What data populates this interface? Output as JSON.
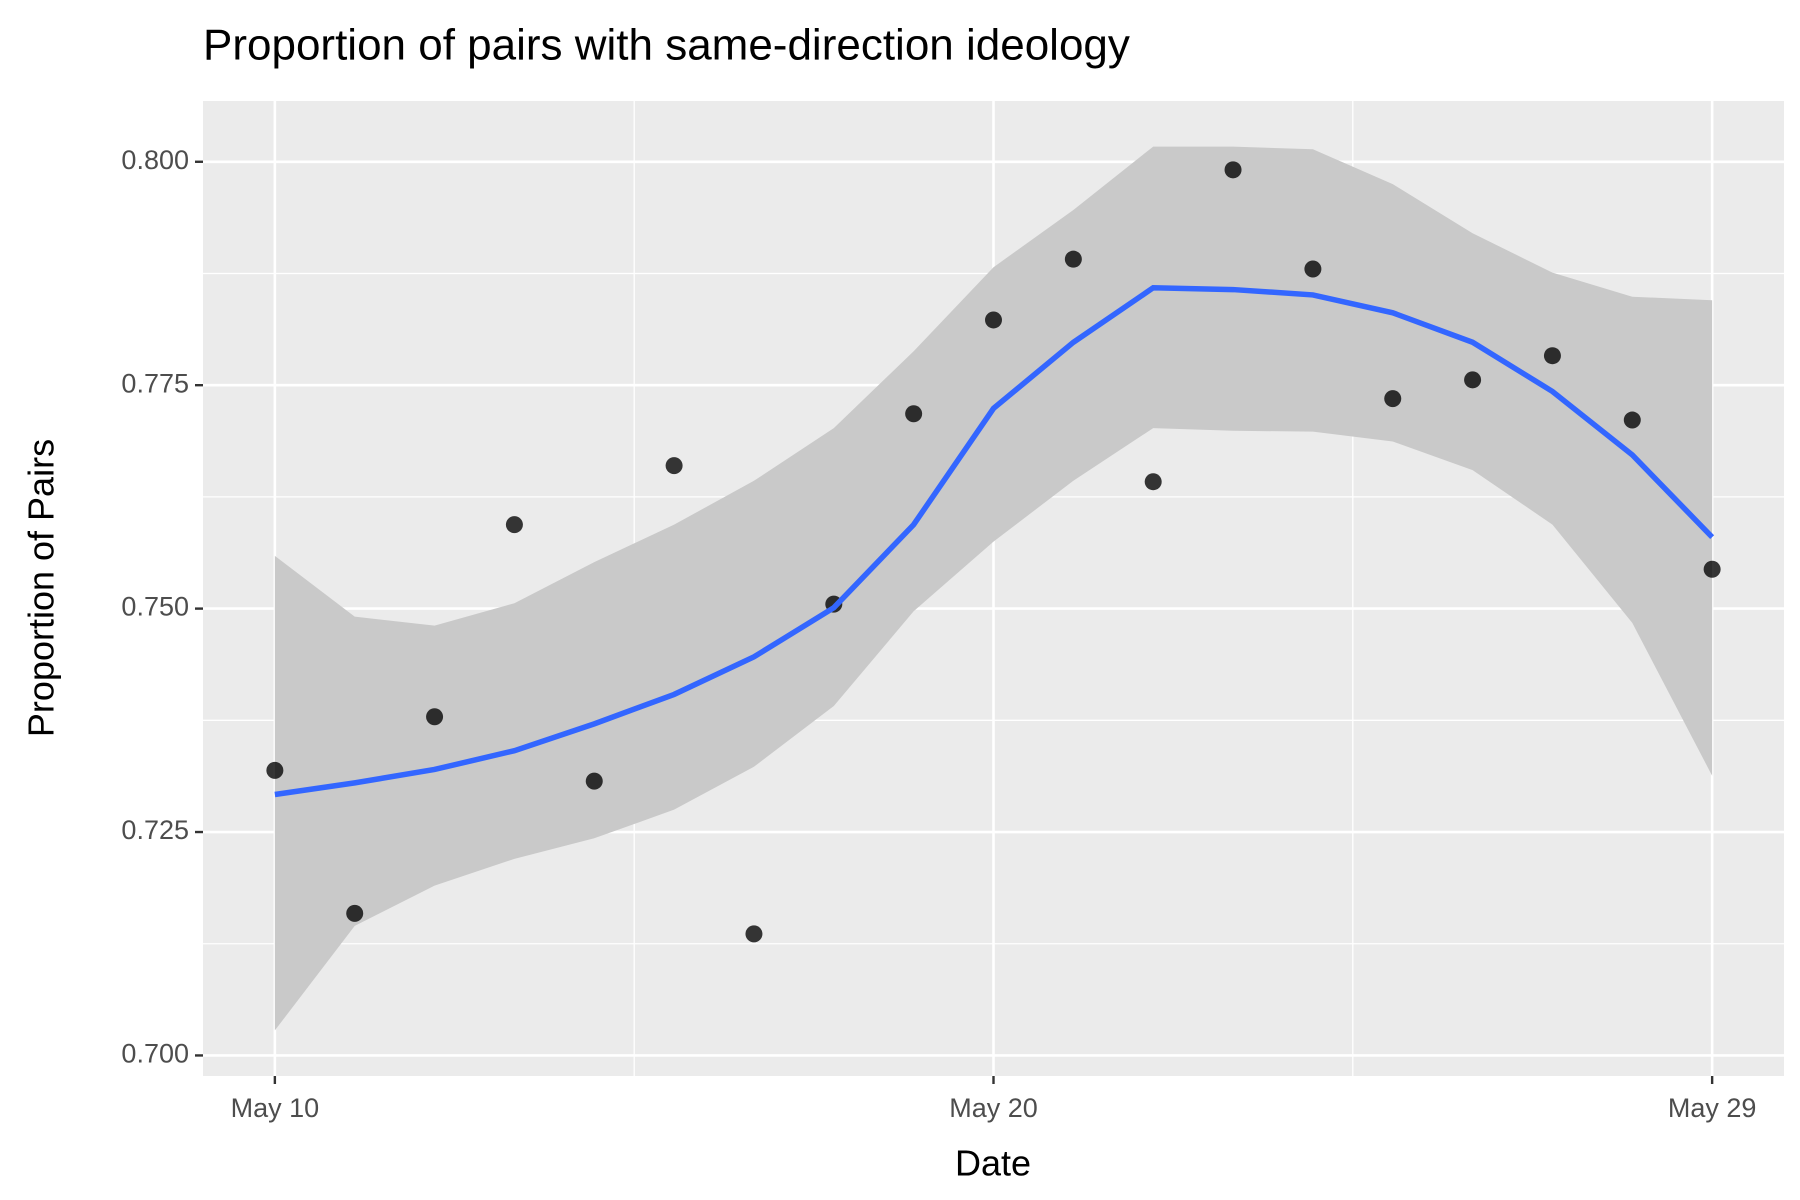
{
  "chart_data": {
    "type": "scatter-smooth",
    "title": "Proportion of pairs with same-direction ideology",
    "x_label": "Date",
    "y_label": "Proportion of Pairs",
    "categories": [
      "May 10",
      null,
      null,
      null,
      null,
      null,
      null,
      null,
      null,
      "May 20",
      null,
      null,
      null,
      null,
      null,
      null,
      null,
      null,
      "May 29"
    ],
    "values": [
      0.7319,
      0.7159,
      0.7379,
      0.7594,
      0.7307,
      0.766,
      0.7136,
      0.7505,
      0.7718,
      0.7823,
      0.7891,
      0.7642,
      0.7991,
      0.788,
      0.7735,
      0.7756,
      0.7783,
      0.7711,
      0.7544
    ],
    "color": "#000000",
    "smooth": {
      "color": "#3366ff",
      "band_color": "#c9c9c9",
      "values": [
        0.7292,
        0.7305,
        0.732,
        0.7341,
        0.7371,
        0.7404,
        0.7446,
        0.7501,
        0.7594,
        0.7724,
        0.7798,
        0.7859,
        0.7857,
        0.7851,
        0.7831,
        0.7798,
        0.7743,
        0.7672,
        0.758
      ],
      "lower": [
        0.7028,
        0.7145,
        0.719,
        0.722,
        0.7243,
        0.7275,
        0.7323,
        0.7391,
        0.7497,
        0.7575,
        0.7643,
        0.7702,
        0.7699,
        0.7698,
        0.7687,
        0.7655,
        0.7594,
        0.7484,
        0.7313
      ],
      "upper": [
        0.7559,
        0.7491,
        0.7481,
        0.7506,
        0.7552,
        0.7594,
        0.7643,
        0.7702,
        0.7788,
        0.7882,
        0.7946,
        0.8017,
        0.8017,
        0.8014,
        0.7975,
        0.792,
        0.7876,
        0.7849,
        0.7845
      ]
    },
    "ylim": [
      0.6977,
      0.8068
    ],
    "yticks": [
      {
        "value": 0.7,
        "label": "0.700"
      },
      {
        "value": 0.725,
        "label": "0.725"
      },
      {
        "value": 0.75,
        "label": "0.750"
      },
      {
        "value": 0.775,
        "label": "0.775"
      },
      {
        "value": 0.8,
        "label": "0.800"
      }
    ],
    "grid": true
  }
}
